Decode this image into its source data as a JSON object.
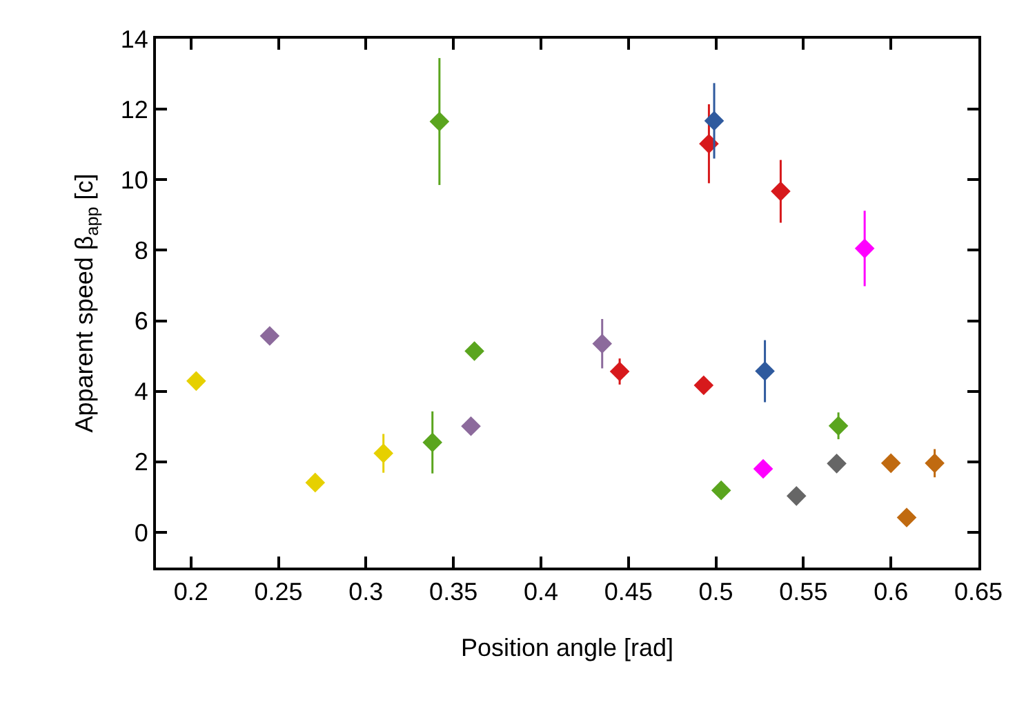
{
  "chart_data": {
    "type": "scatter",
    "xlabel": "Position angle [rad]",
    "ylabel": "Apparent speed β$_{app}$ [c]",
    "xlim": [
      0.18,
      0.65
    ],
    "xticks": [
      0.2,
      0.25,
      0.3,
      0.35,
      0.4,
      0.45,
      0.5,
      0.55,
      0.6,
      0.65
    ],
    "ylim": [
      -1,
      14
    ],
    "yticks": [
      0,
      2,
      4,
      6,
      8,
      10,
      12,
      14
    ],
    "marker": "diamond",
    "series": [
      {
        "color": "#e6d000",
        "x": [
          0.203,
          0.271,
          0.31
        ],
        "values": [
          4.29,
          1.41,
          2.24
        ],
        "errors": [
          null,
          null,
          0.55
        ]
      },
      {
        "color": "#8c6a9c",
        "x": [
          0.245,
          0.36,
          0.435
        ],
        "values": [
          5.57,
          3.01,
          5.35
        ],
        "errors": [
          0.2,
          null,
          0.7
        ]
      },
      {
        "color": "#5aa51e",
        "x": [
          0.342,
          0.338,
          0.362,
          0.57,
          0.503
        ],
        "values": [
          11.65,
          2.55,
          5.14,
          3.02,
          1.19
        ],
        "errors": [
          1.8,
          0.88,
          0.25,
          0.38,
          null
        ]
      },
      {
        "color": "#d7191c",
        "x": [
          0.445,
          0.493,
          0.496,
          0.537
        ],
        "values": [
          4.56,
          4.17,
          11.02,
          9.67
        ],
        "errors": [
          0.37,
          0.2,
          1.12,
          0.89
        ]
      },
      {
        "color": "#2f5a9e",
        "x": [
          0.499,
          0.528
        ],
        "values": [
          11.67,
          4.57
        ],
        "errors": [
          1.07,
          0.88
        ]
      },
      {
        "color": "#ff00ff",
        "x": [
          0.585,
          0.527
        ],
        "values": [
          8.05,
          1.8
        ],
        "errors": [
          1.07,
          0.15
        ]
      },
      {
        "color": "#666666",
        "x": [
          0.546,
          0.569
        ],
        "values": [
          1.03,
          1.95
        ],
        "errors": [
          null,
          null
        ]
      },
      {
        "color": "#c06a10",
        "x": [
          0.6,
          0.609,
          0.625
        ],
        "values": [
          1.96,
          0.42,
          1.96
        ],
        "errors": [
          null,
          null,
          0.4
        ]
      }
    ]
  }
}
